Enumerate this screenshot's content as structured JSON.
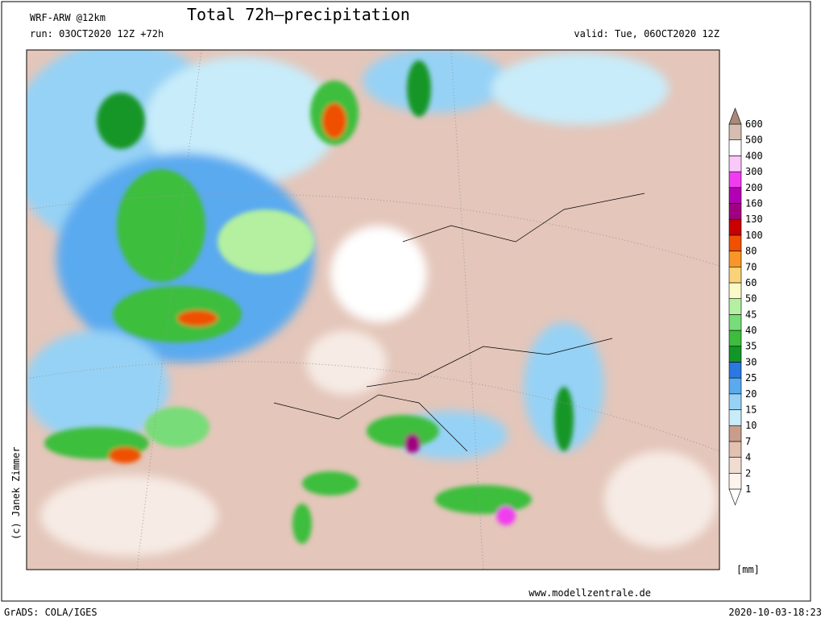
{
  "header": {
    "model": "WRF-ARW @12km",
    "run": "run: 03OCT2020 12Z +72h",
    "title": "Total 72h–precipitation",
    "valid": "valid: Tue, 06OCT2020 12Z"
  },
  "credit": "(c) Janek Zimmer",
  "colorbar": {
    "unit": "[mm]",
    "levels": [
      1,
      2,
      4,
      7,
      10,
      15,
      20,
      25,
      30,
      35,
      40,
      45,
      50,
      60,
      70,
      80,
      100,
      130,
      160,
      200,
      300,
      400,
      500,
      600
    ],
    "colors": [
      "#ffffff",
      "#fdf4ee",
      "#f1dcd2",
      "#e2c0b2",
      "#c99d8d",
      "#c8ecfa",
      "#96d2f5",
      "#5aaaf0",
      "#2a78e0",
      "#129628",
      "#3cbe3c",
      "#78dc78",
      "#b4f0a0",
      "#fafac8",
      "#fad278",
      "#fa9628",
      "#f05000",
      "#c80000",
      "#a00080",
      "#b400b4",
      "#f03cf0",
      "#fac8fa",
      "#ffffff",
      "#d6bdb2",
      "#a88878"
    ]
  },
  "footer": {
    "website": "www.modellzentrale.de",
    "software": "GrADS: COLA/IGES",
    "timestamp": "2020-10-03-18:23"
  }
}
